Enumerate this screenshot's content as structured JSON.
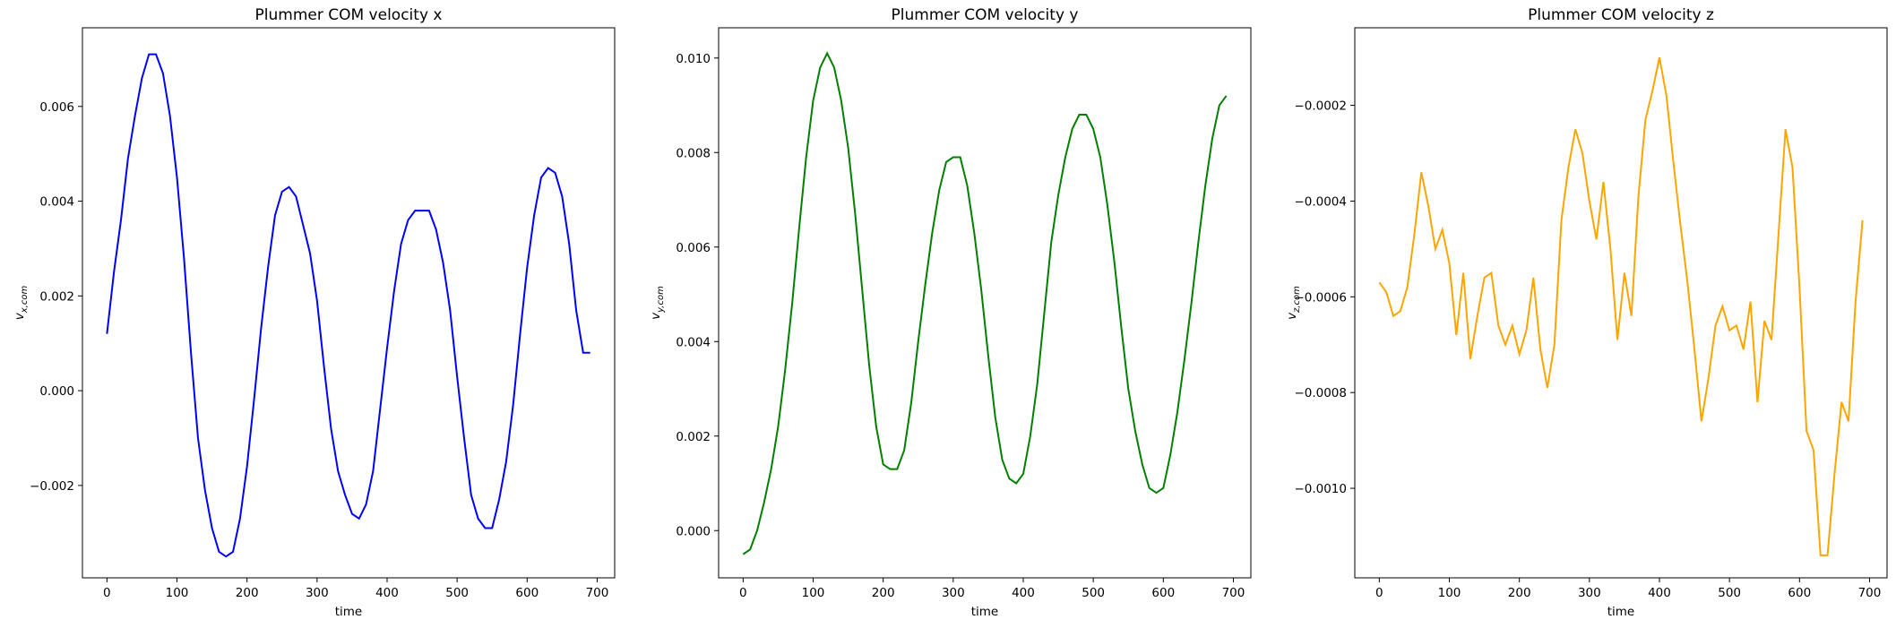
{
  "chart_data": [
    {
      "type": "line",
      "title": "Plummer COM velocity x",
      "xlabel": "time",
      "ylabel": {
        "main": "v",
        "sub": "x,com"
      },
      "color": "#0000ff",
      "xlim": [
        -35,
        725
      ],
      "xticks": [
        0,
        100,
        200,
        300,
        400,
        500,
        600,
        700
      ],
      "ylim": [
        -0.00395,
        0.00766
      ],
      "yticks": [
        {
          "value": -0.002,
          "label": "−0.002"
        },
        {
          "value": 0,
          "label": "0.000"
        },
        0.002,
        0.004,
        0.006
      ],
      "x": [
        0,
        10,
        20,
        30,
        40,
        50,
        60,
        70,
        80,
        90,
        100,
        110,
        120,
        130,
        140,
        150,
        160,
        170,
        180,
        190,
        200,
        210,
        220,
        230,
        240,
        250,
        260,
        270,
        280,
        290,
        300,
        310,
        320,
        330,
        340,
        350,
        360,
        370,
        380,
        390,
        400,
        410,
        420,
        430,
        440,
        450,
        460,
        470,
        480,
        490,
        500,
        510,
        520,
        530,
        540,
        550,
        560,
        570,
        580,
        590,
        600,
        610,
        620,
        630,
        640,
        650,
        660,
        670,
        680,
        690
      ],
      "values": [
        0.0012,
        0.0025,
        0.0036,
        0.0049,
        0.0058,
        0.0066,
        0.0071,
        0.0071,
        0.0067,
        0.0058,
        0.0045,
        0.0028,
        0.0008,
        -0.001,
        -0.0021,
        -0.0029,
        -0.0034,
        -0.0035,
        -0.0034,
        -0.0027,
        -0.0016,
        -0.0002,
        0.0013,
        0.0026,
        0.0037,
        0.0042,
        0.0043,
        0.0041,
        0.0035,
        0.0029,
        0.0019,
        0.0005,
        -0.0008,
        -0.0017,
        -0.0022,
        -0.0026,
        -0.0027,
        -0.0024,
        -0.0017,
        -0.0004,
        0.0009,
        0.0021,
        0.0031,
        0.0036,
        0.0038,
        0.0038,
        0.0038,
        0.0034,
        0.0027,
        0.0017,
        0.0003,
        -0.001,
        -0.0022,
        -0.0027,
        -0.0029,
        -0.0029,
        -0.0023,
        -0.0015,
        -0.0003,
        0.0012,
        0.0026,
        0.0037,
        0.0045,
        0.0047,
        0.0046,
        0.0041,
        0.0031,
        0.0017,
        0.0008,
        0.0008
      ]
    },
    {
      "type": "line",
      "title": "Plummer COM velocity y",
      "xlabel": "time",
      "ylabel": {
        "main": "v",
        "sub": "y,com"
      },
      "color": "#008000",
      "xlim": [
        -35,
        725
      ],
      "xticks": [
        0,
        100,
        200,
        300,
        400,
        500,
        600,
        700
      ],
      "ylim": [
        -0.001,
        0.01064
      ],
      "yticks": [
        {
          "value": 0,
          "label": "0.000"
        },
        0.002,
        0.004,
        0.006,
        0.008,
        {
          "value": 0.01,
          "label": "0.010"
        }
      ],
      "x": [
        0,
        10,
        20,
        30,
        40,
        50,
        60,
        70,
        80,
        90,
        100,
        110,
        120,
        130,
        140,
        150,
        160,
        170,
        180,
        190,
        200,
        210,
        220,
        230,
        240,
        250,
        260,
        270,
        280,
        290,
        300,
        310,
        320,
        330,
        340,
        350,
        360,
        370,
        380,
        390,
        400,
        410,
        420,
        430,
        440,
        450,
        460,
        470,
        480,
        490,
        500,
        510,
        520,
        530,
        540,
        550,
        560,
        570,
        580,
        590,
        600,
        610,
        620,
        630,
        640,
        650,
        660,
        670,
        680,
        690
      ],
      "values": [
        -0.0005,
        -0.0004,
        0.0,
        0.0006,
        0.0013,
        0.0022,
        0.0034,
        0.0048,
        0.0064,
        0.0079,
        0.0091,
        0.0098,
        0.0101,
        0.0098,
        0.0091,
        0.0081,
        0.0067,
        0.0051,
        0.0035,
        0.0022,
        0.0014,
        0.0013,
        0.0013,
        0.0017,
        0.0027,
        0.004,
        0.0052,
        0.0063,
        0.0072,
        0.0078,
        0.0079,
        0.0079,
        0.0073,
        0.0063,
        0.0051,
        0.0037,
        0.0024,
        0.0015,
        0.0011,
        0.001,
        0.0012,
        0.002,
        0.0031,
        0.0046,
        0.0061,
        0.0071,
        0.0079,
        0.0085,
        0.0088,
        0.0088,
        0.0085,
        0.0079,
        0.0069,
        0.0057,
        0.0043,
        0.003,
        0.0021,
        0.0014,
        0.0009,
        0.0008,
        0.0009,
        0.0016,
        0.0025,
        0.0036,
        0.0048,
        0.0061,
        0.0073,
        0.0083,
        0.009,
        0.0092
      ]
    },
    {
      "type": "line",
      "title": "Plummer COM velocity z",
      "xlabel": "time",
      "ylabel": {
        "main": "v",
        "sub": "z,com"
      },
      "color": "#ffa500",
      "xlim": [
        -35,
        725
      ],
      "xticks": [
        0,
        100,
        200,
        300,
        400,
        500,
        600,
        700
      ],
      "ylim": [
        -0.001187,
        -3.8e-05
      ],
      "yticks": [
        {
          "value": -0.001,
          "label": "−0.0010"
        },
        {
          "value": -0.0008,
          "label": "−0.0008"
        },
        {
          "value": -0.0006,
          "label": "−0.0006"
        },
        {
          "value": -0.0004,
          "label": "−0.0004"
        },
        {
          "value": -0.0002,
          "label": "−0.0002"
        }
      ],
      "x": [
        0,
        10,
        20,
        30,
        40,
        50,
        60,
        70,
        80,
        90,
        100,
        110,
        120,
        130,
        140,
        150,
        160,
        170,
        180,
        190,
        200,
        210,
        220,
        230,
        240,
        250,
        260,
        270,
        280,
        290,
        300,
        310,
        320,
        330,
        340,
        350,
        360,
        370,
        380,
        390,
        400,
        410,
        420,
        430,
        440,
        450,
        460,
        470,
        480,
        490,
        500,
        510,
        520,
        530,
        540,
        550,
        560,
        570,
        580,
        590,
        600,
        610,
        620,
        630,
        640,
        650,
        660,
        670,
        680,
        690
      ],
      "values": [
        -0.00057,
        -0.00059,
        -0.00064,
        -0.00063,
        -0.00058,
        -0.00047,
        -0.00034,
        -0.00041,
        -0.0005,
        -0.00046,
        -0.00053,
        -0.00068,
        -0.00055,
        -0.00073,
        -0.00064,
        -0.00056,
        -0.00055,
        -0.00066,
        -0.0007,
        -0.00066,
        -0.00072,
        -0.00067,
        -0.00056,
        -0.00071,
        -0.00079,
        -0.0007,
        -0.00044,
        -0.00033,
        -0.00025,
        -0.0003,
        -0.0004,
        -0.00048,
        -0.00036,
        -0.0005,
        -0.00069,
        -0.00055,
        -0.00064,
        -0.00039,
        -0.00023,
        -0.00017,
        -0.0001,
        -0.00018,
        -0.00032,
        -0.00045,
        -0.00057,
        -0.00071,
        -0.00086,
        -0.00077,
        -0.00066,
        -0.00062,
        -0.00067,
        -0.00066,
        -0.00071,
        -0.00061,
        -0.00082,
        -0.00065,
        -0.00069,
        -0.00047,
        -0.00025,
        -0.00033,
        -0.00058,
        -0.00088,
        -0.00092,
        -0.00114,
        -0.00114,
        -0.00097,
        -0.00082,
        -0.00086,
        -0.00061,
        -0.00044
      ]
    }
  ]
}
